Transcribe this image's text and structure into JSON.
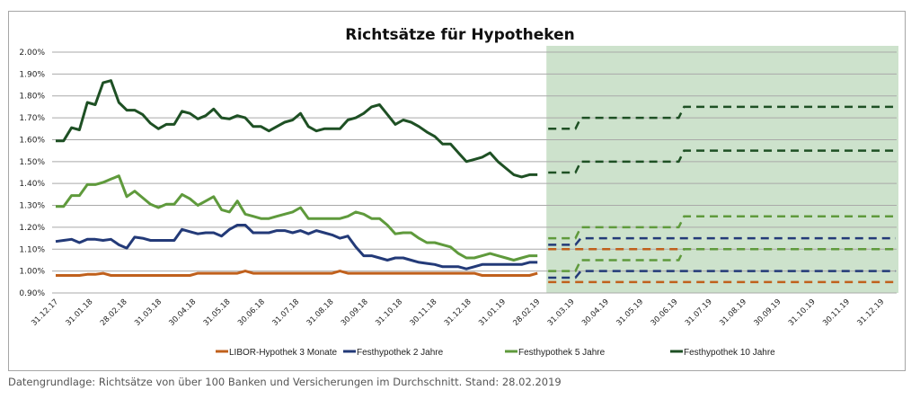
{
  "chart_data": {
    "type": "line",
    "title": "Richtsätze für Hypotheken",
    "xlabel": "",
    "ylabel": "",
    "ylim": [
      0.9,
      2.0
    ],
    "y_ticks": [
      "0.90%",
      "1.00%",
      "1.10%",
      "1.20%",
      "1.30%",
      "1.40%",
      "1.50%",
      "1.60%",
      "1.70%",
      "1.80%",
      "1.90%",
      "2.00%"
    ],
    "y_tick_values": [
      0.9,
      1.0,
      1.1,
      1.2,
      1.3,
      1.4,
      1.5,
      1.6,
      1.7,
      1.8,
      1.9,
      2.0
    ],
    "x_ticks": [
      "31.12.17",
      "31.01.18",
      "28.02.18",
      "31.03.18",
      "30.04.18",
      "31.05.18",
      "30.06.18",
      "31.07.18",
      "31.08.18",
      "30.09.18",
      "31.10.18",
      "30.11.18",
      "31.12.18",
      "31.01.19",
      "28.02.19",
      "31.03.19",
      "30.04.19",
      "31.05.19",
      "30.06.19",
      "31.07.19",
      "31.08.19",
      "30.09.19",
      "31.10.19",
      "30.11.19",
      "31.12.19"
    ],
    "grid": true,
    "legend_position": "bottom",
    "forecast_region": {
      "from": "28.02.19",
      "to": "31.12.19",
      "color": "#cde2cc"
    },
    "history_weeks": 62,
    "series": [
      {
        "name": "LIBOR-Hypothek 3 Monate",
        "color": "#c0601c",
        "values": [
          0.98,
          0.98,
          0.98,
          0.98,
          0.985,
          0.985,
          0.99,
          0.98,
          0.98,
          0.98,
          0.98,
          0.98,
          0.98,
          0.98,
          0.98,
          0.98,
          0.98,
          0.98,
          0.99,
          0.99,
          0.99,
          0.99,
          0.99,
          0.99,
          1.0,
          0.99,
          0.99,
          0.99,
          0.99,
          0.99,
          0.99,
          0.99,
          0.99,
          0.99,
          0.99,
          0.99,
          1.0,
          0.99,
          0.99,
          0.99,
          0.99,
          0.99,
          0.99,
          0.99,
          0.99,
          0.99,
          0.99,
          0.99,
          0.99,
          0.99,
          0.99,
          0.99,
          0.99,
          0.99,
          0.98,
          0.98,
          0.98,
          0.98,
          0.98,
          0.98,
          0.98,
          0.99
        ],
        "forecast_upper": [
          1.1,
          1.1,
          1.1
        ],
        "forecast_lower": [
          0.95,
          0.95,
          0.95
        ]
      },
      {
        "name": "Festhypothek 2 Jahre",
        "color": "#233a78",
        "values": [
          1.135,
          1.14,
          1.145,
          1.13,
          1.145,
          1.145,
          1.14,
          1.145,
          1.12,
          1.105,
          1.155,
          1.15,
          1.14,
          1.14,
          1.14,
          1.14,
          1.19,
          1.18,
          1.17,
          1.175,
          1.175,
          1.16,
          1.19,
          1.21,
          1.21,
          1.175,
          1.175,
          1.175,
          1.185,
          1.185,
          1.175,
          1.185,
          1.17,
          1.185,
          1.175,
          1.165,
          1.15,
          1.16,
          1.11,
          1.07,
          1.07,
          1.06,
          1.05,
          1.06,
          1.06,
          1.05,
          1.04,
          1.035,
          1.03,
          1.02,
          1.02,
          1.02,
          1.01,
          1.02,
          1.03,
          1.03,
          1.03,
          1.03,
          1.03,
          1.03,
          1.04,
          1.04
        ],
        "forecast_upper": [
          1.12,
          1.15,
          1.15
        ],
        "forecast_lower": [
          0.97,
          1.0,
          1.0
        ]
      },
      {
        "name": "Festhypothek 5 Jahre",
        "color": "#5f9a3c",
        "values": [
          1.295,
          1.295,
          1.345,
          1.345,
          1.395,
          1.395,
          1.405,
          1.42,
          1.435,
          1.34,
          1.365,
          1.335,
          1.305,
          1.29,
          1.305,
          1.305,
          1.35,
          1.33,
          1.3,
          1.32,
          1.34,
          1.28,
          1.27,
          1.32,
          1.26,
          1.25,
          1.24,
          1.24,
          1.25,
          1.26,
          1.27,
          1.29,
          1.24,
          1.24,
          1.24,
          1.24,
          1.24,
          1.25,
          1.27,
          1.26,
          1.24,
          1.24,
          1.21,
          1.17,
          1.175,
          1.175,
          1.15,
          1.13,
          1.13,
          1.12,
          1.11,
          1.08,
          1.06,
          1.06,
          1.07,
          1.08,
          1.07,
          1.06,
          1.05,
          1.06,
          1.07,
          1.07
        ],
        "forecast_upper": [
          1.15,
          1.2,
          1.25
        ],
        "forecast_lower": [
          1.0,
          1.05,
          1.1
        ]
      },
      {
        "name": "Festhypothek 10 Jahre",
        "color": "#1e5024",
        "values": [
          1.595,
          1.595,
          1.655,
          1.645,
          1.77,
          1.76,
          1.86,
          1.87,
          1.77,
          1.735,
          1.735,
          1.715,
          1.675,
          1.65,
          1.67,
          1.67,
          1.73,
          1.72,
          1.695,
          1.71,
          1.74,
          1.7,
          1.695,
          1.71,
          1.7,
          1.66,
          1.66,
          1.64,
          1.66,
          1.68,
          1.69,
          1.72,
          1.66,
          1.64,
          1.65,
          1.65,
          1.65,
          1.69,
          1.7,
          1.72,
          1.75,
          1.76,
          1.715,
          1.67,
          1.69,
          1.68,
          1.66,
          1.635,
          1.615,
          1.58,
          1.58,
          1.54,
          1.5,
          1.51,
          1.52,
          1.54,
          1.5,
          1.47,
          1.44,
          1.43,
          1.44,
          1.44
        ],
        "forecast_upper": [
          1.65,
          1.7,
          1.75
        ],
        "forecast_lower": [
          1.45,
          1.5,
          1.55
        ]
      }
    ]
  },
  "footer": {
    "source": "Datengrundlage: Richtsätze von über 100 Banken und Versicherungen im Durchschnitt. Stand: 28.02.2019"
  }
}
